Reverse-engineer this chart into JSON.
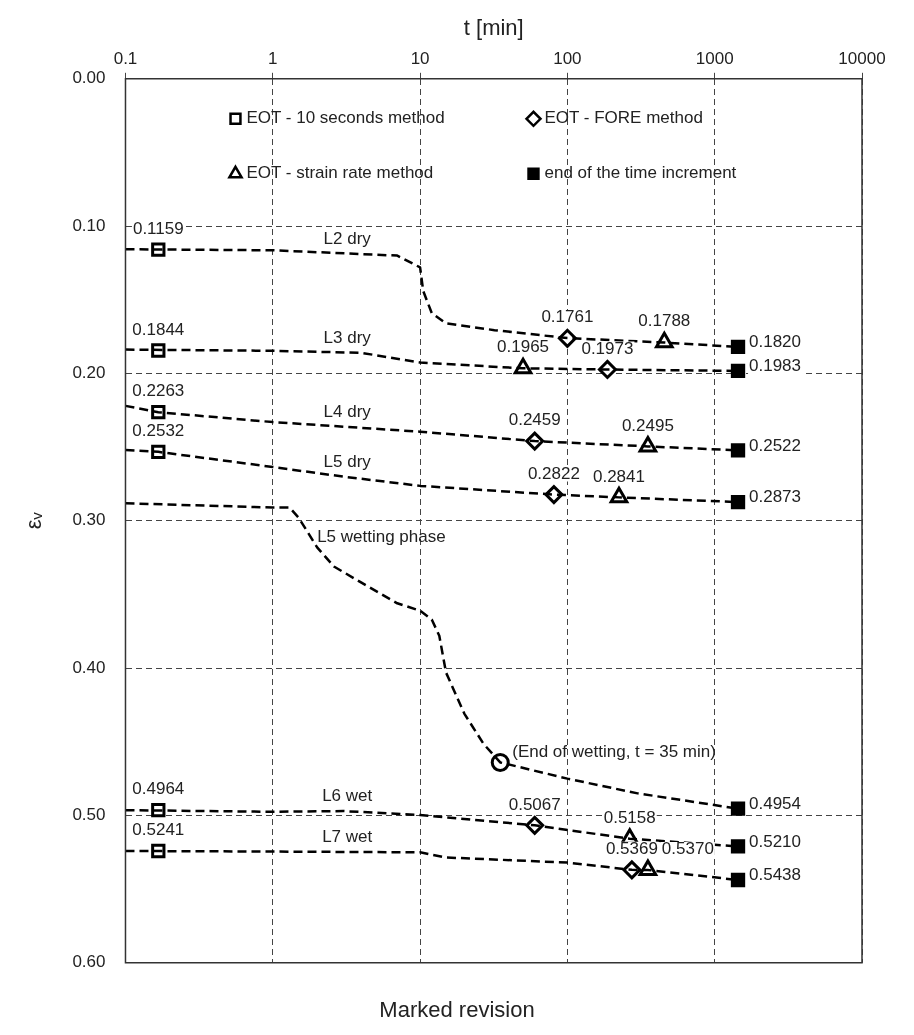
{
  "chart_data": {
    "type": "line",
    "xlabel": "t [min]",
    "ylabel": "εᵥ",
    "log": "x",
    "xlim": [
      0.1,
      10000
    ],
    "xticks": [
      0.1,
      1,
      10,
      100,
      1000,
      10000
    ],
    "ylim": [
      0.6,
      0
    ],
    "yticks": [
      {
        "value": 0,
        "label": "0.00"
      },
      {
        "value": 0.1,
        "label": "0.10"
      },
      {
        "value": 0.2,
        "label": "0.20"
      },
      {
        "value": 0.3,
        "label": "0.30"
      },
      {
        "value": 0.4,
        "label": "0.40"
      },
      {
        "value": 0.5,
        "label": "0.50"
      },
      {
        "value": 0.6,
        "label": "0.60"
      }
    ],
    "grid": true,
    "legend": "top",
    "line_style": "dashed",
    "series": [
      {
        "name": "L2 dry",
        "type": "line",
        "color": "#000000",
        "x": [
          0.1,
          1,
          7,
          10,
          10.5,
          12,
          15,
          32,
          100,
          455,
          1440
        ],
        "values": [
          0.1157,
          0.1164,
          0.12,
          0.128,
          0.144,
          0.159,
          0.166,
          0.1706,
          0.176,
          0.179,
          0.182
        ]
      },
      {
        "name": "L3 dry",
        "type": "line",
        "color": "#000000",
        "x": [
          0.1,
          1,
          4,
          10,
          50,
          187,
          1440
        ],
        "values": [
          0.1838,
          0.1846,
          0.186,
          0.1926,
          0.1965,
          0.1973,
          0.1983
        ]
      },
      {
        "name": "L4 dry",
        "type": "line",
        "color": "#000000",
        "x": [
          0.1,
          0.167,
          1,
          10,
          60,
          352,
          1440
        ],
        "values": [
          0.222,
          0.2263,
          0.233,
          0.2395,
          0.2459,
          0.2495,
          0.2522
        ]
      },
      {
        "name": "L5 dry",
        "type": "line",
        "color": "#000000",
        "x": [
          0.1,
          0.167,
          1,
          3,
          10,
          81,
          224,
          1440
        ],
        "values": [
          0.252,
          0.2532,
          0.2635,
          0.27,
          0.2763,
          0.2822,
          0.2841,
          0.2873
        ]
      },
      {
        "name": "L5 wetting phase",
        "type": "line",
        "color": "#000000",
        "x": [
          0.1,
          1,
          1.3,
          1.5,
          2,
          2.6,
          4,
          7,
          10,
          12,
          13.5,
          15,
          20,
          27,
          35,
          100,
          300,
          1440
        ],
        "values": [
          0.2881,
          0.291,
          0.291,
          0.298,
          0.318,
          0.331,
          0.342,
          0.356,
          0.361,
          0.367,
          0.378,
          0.403,
          0.431,
          0.4515,
          0.464,
          0.475,
          0.485,
          0.4954
        ]
      },
      {
        "name": "L6 wet",
        "type": "line",
        "color": "#000000",
        "x": [
          0.1,
          1,
          3,
          10,
          60,
          265,
          1440
        ],
        "values": [
          0.4964,
          0.4975,
          0.497,
          0.4997,
          0.5067,
          0.5158,
          0.521
        ]
      },
      {
        "name": "L7 wet",
        "type": "line",
        "color": "#000000",
        "x": [
          0.1,
          1,
          10,
          15,
          100,
          274,
          352,
          1440
        ],
        "values": [
          0.5241,
          0.5245,
          0.525,
          0.5285,
          0.532,
          0.5369,
          0.537,
          0.5438
        ]
      },
      {
        "name": "EOT - 10 seconds method",
        "type": "scatter",
        "marker": "square",
        "color": "#000000",
        "x": [
          0.167,
          0.167,
          0.167,
          0.167,
          0.167,
          0.167
        ],
        "values": [
          0.1159,
          0.1844,
          0.2263,
          0.2532,
          0.4964,
          0.5241
        ],
        "value_labels": [
          "0.1159",
          "0.1844",
          "0.2263",
          "0.2532",
          "0.4964",
          "0.5241"
        ]
      },
      {
        "name": "EOT - FORE method",
        "type": "scatter",
        "marker": "diamond",
        "color": "#000000",
        "x": [
          100,
          187,
          60,
          81,
          60,
          274
        ],
        "values": [
          0.1761,
          0.1973,
          0.2459,
          0.2822,
          0.5067,
          0.5369
        ],
        "value_labels": [
          "0.1761",
          "0.1973",
          "0.2459",
          "0.2822",
          "0.5067",
          "0.5369"
        ]
      },
      {
        "name": "EOT - strain rate method",
        "type": "scatter",
        "marker": "triangle",
        "color": "#000000",
        "x": [
          455,
          50,
          352,
          224,
          265,
          352
        ],
        "values": [
          0.1788,
          0.1965,
          0.2495,
          0.2841,
          0.5158,
          0.537
        ],
        "value_labels": [
          "0.1788",
          "0.1965",
          "0.2495",
          "0.2841",
          "0.5158",
          "0.5370"
        ]
      },
      {
        "name": "end of the time increment",
        "type": "scatter",
        "marker": "square",
        "color": "#000000",
        "x": [
          1440,
          1440,
          1440,
          1440,
          1440,
          1440,
          1440
        ],
        "values": [
          0.182,
          0.1983,
          0.2522,
          0.2873,
          0.4954,
          0.521,
          0.5438
        ],
        "value_labels": [
          "0.1820",
          "0.1983",
          "0.2522",
          "0.2873",
          "0.4954",
          "0.5210",
          "0.5438"
        ]
      }
    ],
    "annotations": [
      {
        "text": "(End of wetting, t = 35 min)",
        "x": 35,
        "y": 0.464
      },
      "Marked revision"
    ]
  }
}
